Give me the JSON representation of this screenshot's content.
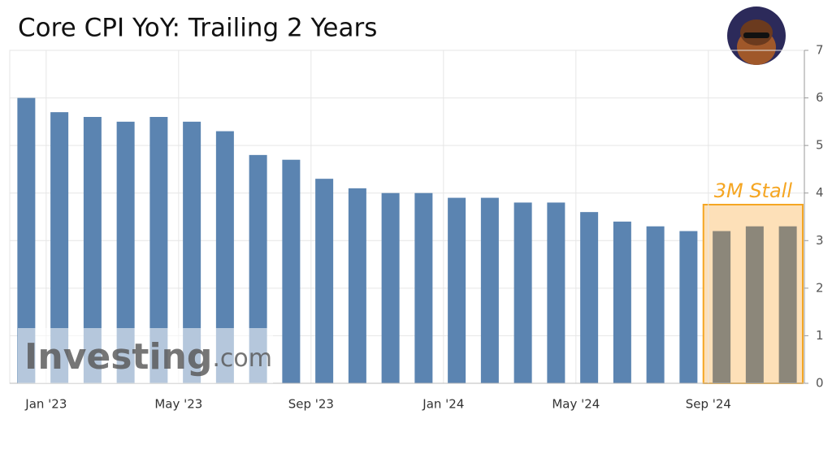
{
  "chart_data": {
    "type": "bar",
    "title": "Core CPI YoY: Trailing 2 Years",
    "categories": [
      "Jan '23",
      null,
      null,
      null,
      "May '23",
      null,
      null,
      null,
      "Sep '23",
      null,
      null,
      null,
      "Jan '24",
      null,
      null,
      null,
      "May '24",
      null,
      null,
      null,
      "Sep '24",
      null,
      null,
      null
    ],
    "values": [
      6.0,
      5.7,
      5.6,
      5.5,
      5.6,
      5.5,
      5.3,
      4.8,
      4.7,
      4.3,
      4.1,
      4.0,
      4.0,
      3.9,
      3.9,
      3.8,
      3.8,
      3.6,
      3.4,
      3.3,
      3.2,
      3.2,
      3.3,
      3.3
    ],
    "colors": [
      "#5b84b1",
      "#5b84b1",
      "#5b84b1",
      "#5b84b1",
      "#5b84b1",
      "#5b84b1",
      "#5b84b1",
      "#5b84b1",
      "#5b84b1",
      "#5b84b1",
      "#5b84b1",
      "#5b84b1",
      "#5b84b1",
      "#5b84b1",
      "#5b84b1",
      "#5b84b1",
      "#5b84b1",
      "#5b84b1",
      "#5b84b1",
      "#5b84b1",
      "#5b84b1",
      "#8c877a",
      "#8c877a",
      "#8c877a"
    ],
    "ylim": [
      0,
      7
    ],
    "yticks": [
      0,
      1,
      2,
      3,
      4,
      5,
      6,
      7
    ],
    "grid": true,
    "annotation": "3M Stall",
    "watermark": {
      "brand": "Investing",
      "suffix": ".com"
    }
  }
}
